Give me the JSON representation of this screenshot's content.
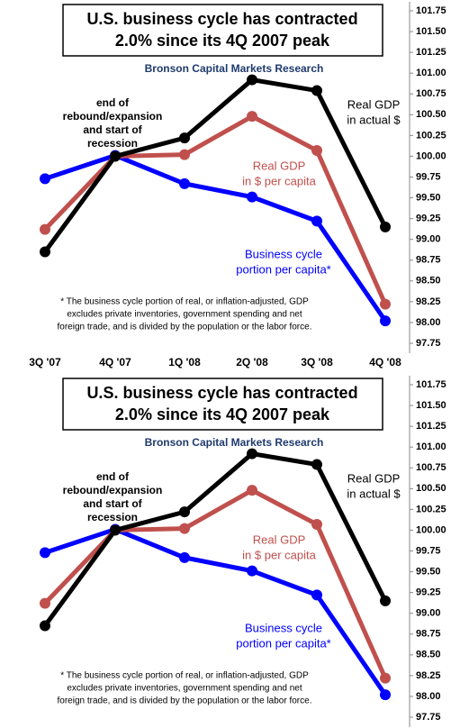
{
  "chart_data": [
    {
      "type": "line",
      "title": [
        "U.S. business cycle has contracted",
        "2.0% since its 4Q 2007 peak"
      ],
      "subtitle": "Bronson Capital Markets Research",
      "categories": [
        "3Q '07",
        "4Q '07",
        "1Q '08",
        "2Q '08",
        "3Q '08",
        "4Q '08"
      ],
      "series": [
        {
          "label": [
            "Real GDP",
            "in actual $"
          ],
          "color": "#000000",
          "values": [
            98.85,
            100.0,
            100.22,
            100.92,
            100.79,
            99.15
          ]
        },
        {
          "label": [
            "Real GDP",
            "in $ per capita"
          ],
          "color": "#c0504d",
          "values": [
            99.12,
            100.0,
            100.02,
            100.48,
            100.07,
            98.22
          ]
        },
        {
          "label": [
            "Business cycle",
            "portion per capita*"
          ],
          "color": "#0000ff",
          "values": [
            99.73,
            100.01,
            99.67,
            99.51,
            99.22,
            98.02
          ]
        }
      ],
      "annotation": [
        "end of",
        "rebound/expansion",
        "and start of",
        "recession"
      ],
      "footnote": [
        "* The  business cycle portion of real, or inflation-adjusted, GDP",
        "excludes private inventories, government spending and net",
        "foreign trade, and is divided by the population or the labor force."
      ],
      "ylim": [
        97.75,
        101.75
      ],
      "yticks": [
        97.75,
        {
          "value": 98,
          "label": "98.00"
        },
        98.25,
        {
          "value": 98.5,
          "label": "98.50"
        },
        98.75,
        {
          "value": 99,
          "label": "99.00"
        },
        99.25,
        {
          "value": 99.5,
          "label": "99.50"
        },
        99.75,
        {
          "value": 100,
          "label": "100.00"
        },
        100.25,
        {
          "value": 100.5,
          "label": "100.50"
        },
        100.75,
        {
          "value": 101,
          "label": "101.00"
        },
        101.25,
        {
          "value": 101.5,
          "label": "101.50"
        },
        101.75
      ]
    },
    {
      "type": "line",
      "title": [
        "U.S. business cycle has contracted",
        "2.0% since its 4Q 2007 peak"
      ],
      "subtitle": "Bronson Capital Markets Research",
      "categories": [
        null,
        null,
        null,
        null,
        null,
        null
      ],
      "series": [
        {
          "label": [
            "Real GDP",
            "in actual $"
          ],
          "color": "#000000",
          "values": [
            98.85,
            100.0,
            100.22,
            100.92,
            100.79,
            99.15
          ]
        },
        {
          "label": [
            "Real GDP",
            "in $ per capita"
          ],
          "color": "#c0504d",
          "values": [
            99.12,
            100.0,
            100.02,
            100.48,
            100.07,
            98.22
          ]
        },
        {
          "label": [
            "Business cycle",
            "portion per capita*"
          ],
          "color": "#0000ff",
          "values": [
            99.73,
            100.01,
            99.67,
            99.51,
            99.22,
            98.02
          ]
        }
      ],
      "annotation": [
        "end of",
        "rebound/expansion",
        "and start of",
        "recession"
      ],
      "footnote": [
        "* The  business cycle portion of real, or inflation-adjusted, GDP",
        "excludes private inventories, government spending and net",
        "foreign trade, and is divided by the population or the labor force."
      ],
      "ylim": [
        97.75,
        101.75
      ],
      "yticks": [
        97.75,
        {
          "value": 98,
          "label": "98.00"
        },
        98.25,
        {
          "value": 98.5,
          "label": "98.50"
        },
        98.75,
        {
          "value": 99,
          "label": "99.00"
        },
        99.25,
        {
          "value": 99.5,
          "label": "99.50"
        },
        99.75,
        {
          "value": 100,
          "label": "100.00"
        },
        100.25,
        {
          "value": 100.5,
          "label": "100.50"
        },
        100.75,
        {
          "value": 101,
          "label": "101.00"
        },
        101.25,
        {
          "value": 101.5,
          "label": "101.50"
        },
        101.75
      ]
    }
  ]
}
